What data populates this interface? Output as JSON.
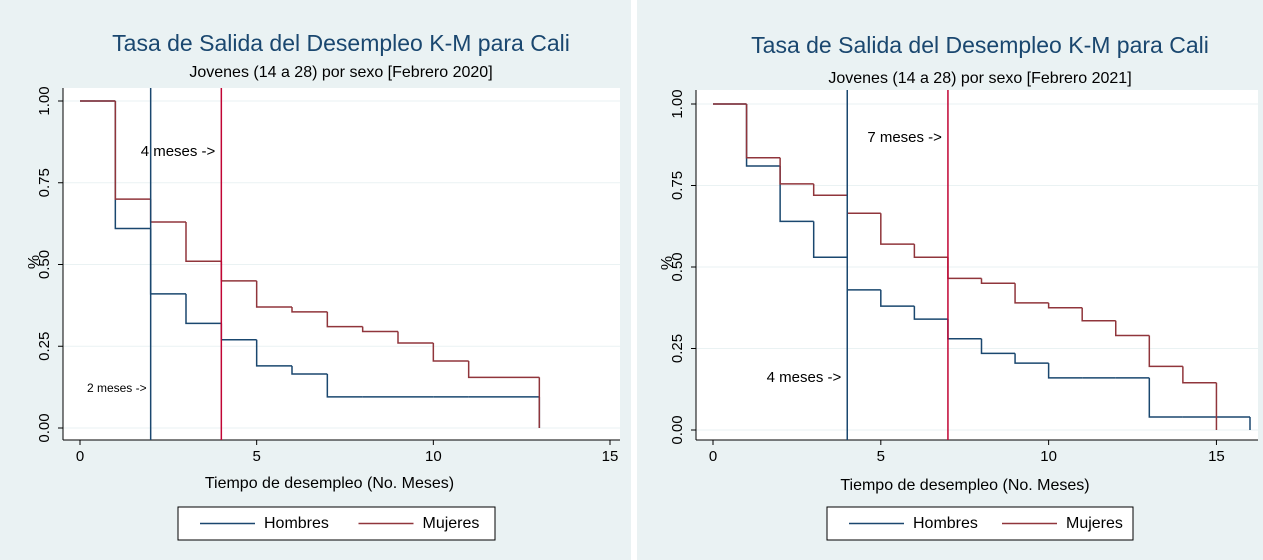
{
  "chart_data": [
    {
      "type": "step",
      "title": "Tasa de Salida del Desempleo K-M para Cali",
      "subtitle": "Jovenes (14 a 28) por sexo [Febrero 2020]",
      "x_label": "Tiempo de desempleo (No. Meses)",
      "y_label": "%",
      "x": [
        0,
        1,
        2,
        3,
        4,
        5,
        6,
        7,
        8,
        9,
        10,
        11,
        12,
        13
      ],
      "series": [
        {
          "name": "Hombres",
          "color": "#1a476f",
          "values": [
            1,
            0.61,
            0.41,
            0.32,
            0.27,
            0.19,
            0.165,
            0.095,
            0.095,
            0.095,
            0.095,
            0.095,
            0.095,
            0
          ]
        },
        {
          "name": "Mujeres",
          "color": "#90353b",
          "values": [
            1,
            0.7,
            0.63,
            0.51,
            0.45,
            0.37,
            0.355,
            0.31,
            0.295,
            0.26,
            0.205,
            0.155,
            0.155,
            0
          ]
        }
      ],
      "annotations": [
        {
          "x": 2,
          "color": "#1a476f",
          "label": "2 meses ->"
        },
        {
          "x": 4,
          "color": "#c10534",
          "label": "4 meses ->"
        }
      ],
      "xlim": [
        0,
        15
      ],
      "xticks": [
        0,
        5,
        10,
        15
      ],
      "ylim": [
        0,
        1
      ],
      "yticks": [
        {
          "value": 0,
          "label": "0.00"
        },
        {
          "value": 0.25,
          "label": "0.25"
        },
        {
          "value": 0.5,
          "label": "0.50"
        },
        {
          "value": 0.75,
          "label": "0.75"
        },
        {
          "value": 1,
          "label": "1.00"
        }
      ],
      "grid": true,
      "legend": "bottom"
    },
    {
      "type": "step",
      "title": "Tasa de Salida del Desempleo K-M para Cali",
      "subtitle": "Jovenes (14 a 28) por sexo [Febrero 2021]",
      "x_label": "Tiempo de desempleo (No. Meses)",
      "y_label": "%",
      "x": [
        0,
        1,
        2,
        3,
        4,
        5,
        6,
        7,
        8,
        9,
        10,
        11,
        12,
        13,
        14,
        15,
        16
      ],
      "series": [
        {
          "name": "Hombres",
          "color": "#1a476f",
          "values": [
            1,
            0.81,
            0.64,
            0.53,
            0.43,
            0.38,
            0.34,
            0.28,
            0.235,
            0.205,
            0.16,
            0.16,
            0.16,
            0.04,
            0.04,
            0.04,
            0
          ]
        },
        {
          "name": "Mujeres",
          "color": "#90353b",
          "values": [
            1,
            0.835,
            0.755,
            0.72,
            0.665,
            0.57,
            0.53,
            0.465,
            0.45,
            0.39,
            0.375,
            0.335,
            0.29,
            0.195,
            0.145,
            0,
            null
          ]
        }
      ],
      "annotations": [
        {
          "x": 4,
          "color": "#1a476f",
          "label": "4 meses ->"
        },
        {
          "x": 7,
          "color": "#c10534",
          "label": "7 meses ->"
        }
      ],
      "xlim": [
        0,
        16
      ],
      "xticks": [
        0,
        5,
        10,
        15
      ],
      "ylim": [
        0,
        1
      ],
      "yticks": [
        {
          "value": 0,
          "label": "0.00"
        },
        {
          "value": 0.25,
          "label": "0.25"
        },
        {
          "value": 0.5,
          "label": "0.50"
        },
        {
          "value": 0.75,
          "label": "0.75"
        },
        {
          "value": 1,
          "label": "1.00"
        }
      ],
      "grid": true,
      "legend": "bottom"
    }
  ]
}
